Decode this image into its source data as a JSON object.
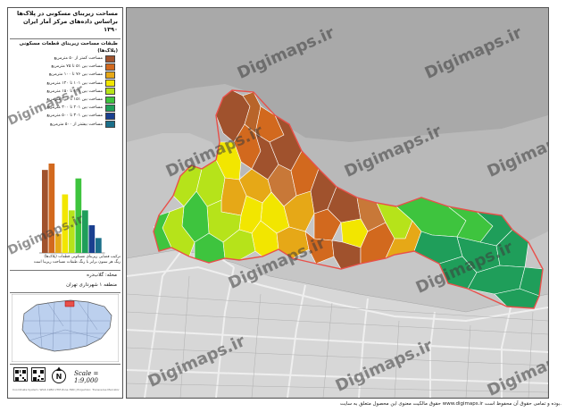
{
  "title": {
    "line1": "مساحت زیربنای مسکونی در پلاک‌ها",
    "line2": "براساس داده‌های مرکز آمار ایران ۱۳۹۰"
  },
  "legend": {
    "title": "طبقات مساحت زیربنای قطعات مسکونی (پلاک‌ها)",
    "items": [
      {
        "label": "مساحت کمتر از ۵۰ مترمربع",
        "color": "#a0522d"
      },
      {
        "label": "مساحت بین ۵۱ تا ۷۵ مترمربع",
        "color": "#d2691e"
      },
      {
        "label": "مساحت بین ۷۶ تا ۱۰۰ مترمربع",
        "color": "#e6a817"
      },
      {
        "label": "مساحت بین ۱۰۱ تا ۱۲۰ مترمربع",
        "color": "#f2e600"
      },
      {
        "label": "مساحت بین ۱۲۱ تا ۱۵۰ مترمربع",
        "color": "#b6e31a"
      },
      {
        "label": "مساحت بین ۱۵۱ تا ۲۰۰ مترمربع",
        "color": "#3ec43e"
      },
      {
        "label": "مساحت بین ۲۰۱ تا ۳۰۰ مترمربع",
        "color": "#1f9e5a"
      },
      {
        "label": "مساحت بین ۳۰۱ تا ۵۰۰ مترمربع",
        "color": "#1a3f8f"
      },
      {
        "label": "مساحت بیشتر از ۵۰۰ مترمربع",
        "color": "#1b6f8a"
      }
    ]
  },
  "histogram": {
    "values": [
      78,
      84,
      18,
      55,
      40,
      70,
      40,
      26,
      14
    ],
    "colors": [
      "#a0522d",
      "#d2691e",
      "#e6a817",
      "#f2e600",
      "#b6e31a",
      "#3ec43e",
      "#1f9e5a",
      "#1a3f8f",
      "#1b6f8a"
    ],
    "caption1": "ترکیب فضایی زیربنای مسکونی قطعات (پلاک‌ها)",
    "caption2": "رنگ هر ستون برابر با رنگ طبقات مساحت زیربنا است"
  },
  "district": {
    "line1": "محله: گلاب‌دره",
    "line2": "منطقه ۱ شهرداری تهران"
  },
  "scale": "Scale = 1:9,000",
  "north_letter": "N",
  "credits_small": "Coordinate System: WGS 1984 UTM Zone 39N | Projection: Transverse Mercator",
  "watermark": "Digimaps.ir",
  "footer": "حقوق مالکیت معنوی این محصول متعلق به سایت www.digimaps.ir بوده و تمامی حقوق آن محفوظ است.",
  "map": {
    "boundary_color": "#e8504a",
    "background_color": "#c8c8c8",
    "road_color": "#f4f4f4"
  }
}
